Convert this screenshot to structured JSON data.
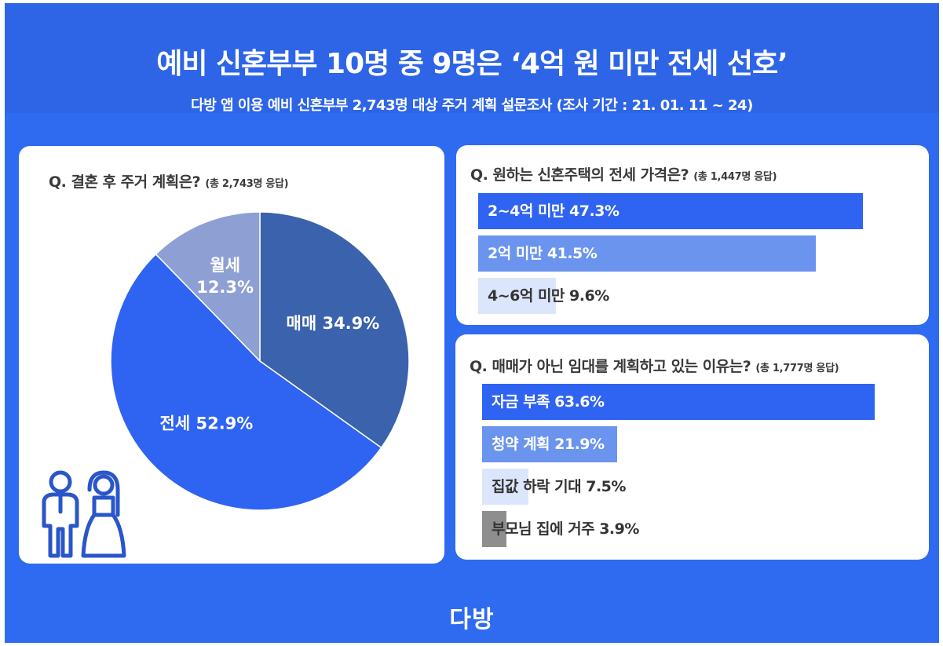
{
  "header": {
    "title": "예비 신혼부부 10명 중 9명은 ‘4억 원 미만 전세 선호’",
    "subtitle": "다방 앱 이용 예비 신혼부부 2,743명 대상 주거 계획 설문조사 (조사 기간 : 21. 01. 11 ~ 24)"
  },
  "logo": "다방",
  "colors": {
    "background": "#2f6bf0",
    "header": "#2e65e6",
    "dark_blue": "#3a62ad",
    "bright_blue": "#2f63f2",
    "mid_blue": "#6a94ee",
    "light_blue": "#dbe5fb",
    "gray_blue": "#8ea0d3",
    "gray": "#8e8e8e"
  },
  "chart_data": [
    {
      "type": "pie",
      "title": "Q. 결혼 후 주거 계획은?",
      "note": "(총 2,743명 응답)",
      "slices": [
        {
          "label": "매매",
          "display": "매매 34.9%",
          "value": 34.9,
          "color": "#3a62ad"
        },
        {
          "label": "전세",
          "display": "전세 52.9%",
          "value": 52.9,
          "color": "#2f63f2"
        },
        {
          "label": "월세",
          "display_line1": "월세",
          "display_line2": "12.3%",
          "value": 12.3,
          "color": "#8ea0d3"
        }
      ]
    },
    {
      "type": "bar",
      "title": "Q. 원하는 신혼주택의 전세 가격은?",
      "note": "(총 1,447명 응답)",
      "bars": [
        {
          "label": "2~4억 미만 47.3%",
          "value": 47.3,
          "color": "#2f63f2",
          "text_color": "#ffffff"
        },
        {
          "label": "2억 미만 41.5%",
          "value": 41.5,
          "color": "#6a94ee",
          "text_color": "#ffffff"
        },
        {
          "label": "4~6억 미만 9.6%",
          "value": 9.6,
          "color": "#dbe5fb",
          "text_color": "#333333"
        }
      ]
    },
    {
      "type": "bar",
      "title": "Q. 매매가 아닌 임대를 계획하고 있는 이유는?",
      "note": "(총 1,777명 응답)",
      "bars": [
        {
          "label": "자금 부족 63.6%",
          "value": 63.6,
          "color": "#2f63f2",
          "text_color": "#ffffff"
        },
        {
          "label": "청약 계획 21.9%",
          "value": 21.9,
          "color": "#6a94ee",
          "text_color": "#ffffff"
        },
        {
          "label": "집값 하락 기대 7.5%",
          "value": 7.5,
          "color": "#dbe5fb",
          "text_color": "#333333"
        },
        {
          "label": "부모님 집에 거주 3.9%",
          "value": 3.9,
          "color": "#8e8e8e",
          "text_color": "#333333"
        }
      ]
    }
  ]
}
